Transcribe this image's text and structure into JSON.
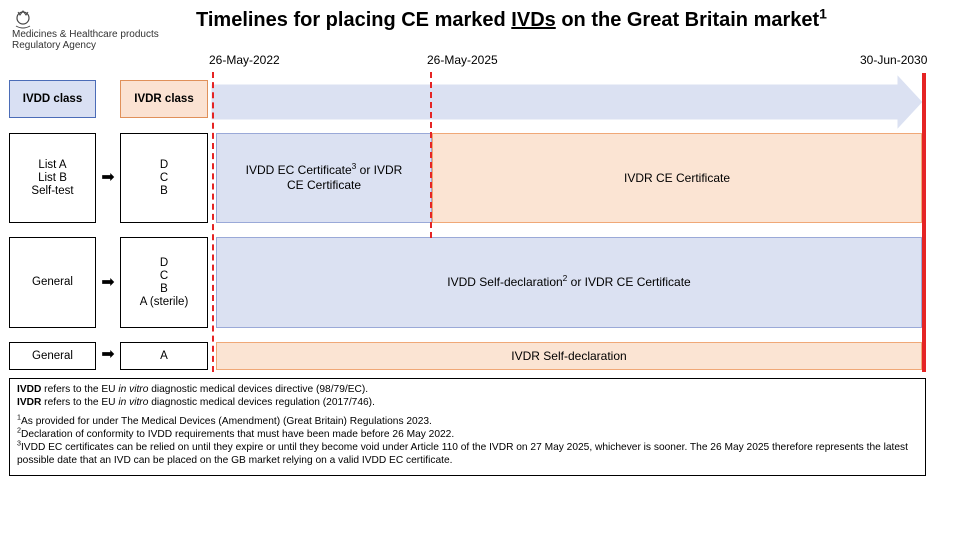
{
  "logo": {
    "icon": "royal-crest-icon",
    "line1": "Medicines & Healthcare products",
    "line2": "Regulatory Agency"
  },
  "title": {
    "prefix": "Timelines for placing CE marked ",
    "underlined": "IVDs",
    "suffix": " on the Great Britain market",
    "sup": "1"
  },
  "timeline": {
    "dates": [
      "26-May-2022",
      "26-May-2025",
      "30-Jun-2030"
    ]
  },
  "headers": {
    "ivdd_class": "IVDD class",
    "ivdr_class": "IVDR class"
  },
  "rows": [
    {
      "ivdd": [
        "List A",
        "List B",
        "Self-test"
      ],
      "ivdr": [
        "D",
        "C",
        "B"
      ],
      "band1": {
        "text": "IVDD EC Certificate",
        "sup": "3",
        "text2": " or IVDR",
        "line2": "CE Certificate"
      },
      "band2": {
        "text": "IVDR CE Certificate"
      }
    },
    {
      "ivdd": [
        "General"
      ],
      "ivdr": [
        "D",
        "C",
        "B",
        "A (sterile)"
      ],
      "band": {
        "text": "IVDD Self-declaration",
        "sup": "2",
        "text2": " or IVDR CE Certificate"
      }
    },
    {
      "ivdd": [
        "General"
      ],
      "ivdr": [
        "A"
      ],
      "band": {
        "text": "IVDR Self-declaration"
      }
    }
  ],
  "colors": {
    "ivdd_blue": "#dbe1f2",
    "ivdr_peach": "#fbe4d3",
    "deadline_red": "#e52424"
  },
  "notes": {
    "ivdd_def": {
      "bold": "IVDD",
      "a": " refers to the EU ",
      "ital": "in vitro",
      "b": " diagnostic medical devices directive (98/79/EC)."
    },
    "ivdr_def": {
      "bold": "IVDR",
      "a": " refers to the EU ",
      "ital": "in vitro",
      "b": " diagnostic medical devices regulation (2017/746)."
    },
    "fn1": {
      "num": "1",
      "text": "As provided for under The Medical Devices (Amendment) (Great Britain) Regulations 2023."
    },
    "fn2": {
      "num": "2",
      "text": "Declaration of conformity to IVDD requirements that must have been made before 26 May 2022."
    },
    "fn3": {
      "num": "3",
      "text": "IVDD EC certificates can be relied on until they expire or until they become void under Article 110 of the IVDR on 27 May 2025, whichever is sooner. The 26 May 2025 therefore represents the latest possible date that an IVD can be placed on the GB market relying on a valid IVDD EC certificate."
    }
  }
}
